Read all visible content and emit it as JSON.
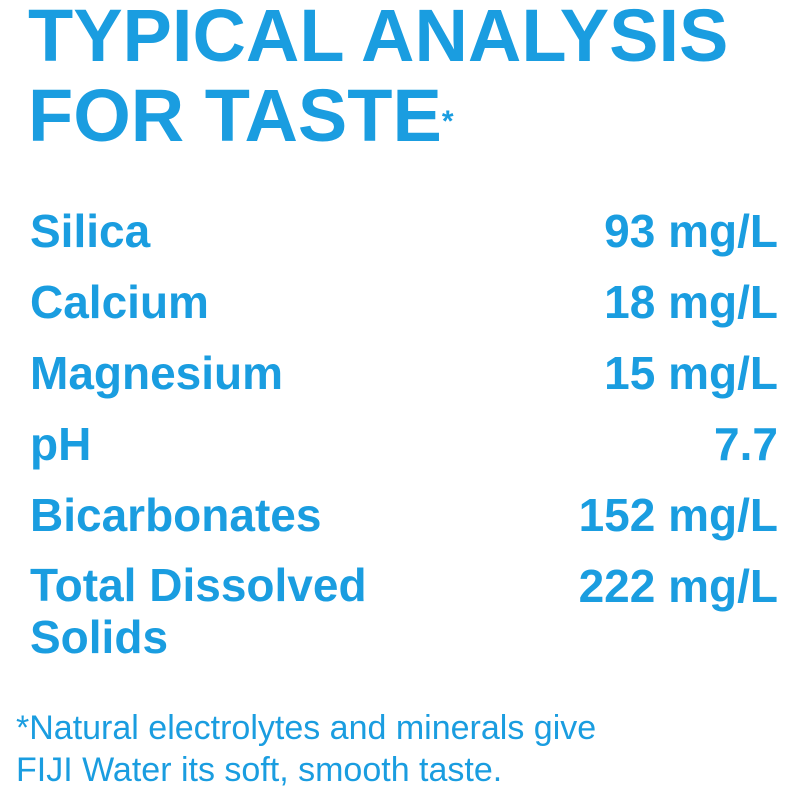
{
  "title": {
    "line1": "TYPICAL ANALYSIS",
    "line2": "FOR TASTE",
    "asterisk": "*"
  },
  "rows": [
    {
      "label": "Silica",
      "value": "93 mg/L"
    },
    {
      "label": "Calcium",
      "value": "18 mg/L"
    },
    {
      "label": "Magnesium",
      "value": "15 mg/L"
    },
    {
      "label": "pH",
      "value": "7.7"
    },
    {
      "label": "Bicarbonates",
      "value": "152 mg/L"
    },
    {
      "label": "Total Dissolved Solids",
      "value": "222 mg/L"
    }
  ],
  "footnote": {
    "line1": "*Natural electrolytes and minerals give",
    "line2": "FIJI Water its soft, smooth taste."
  },
  "colors": {
    "text": "#1a9de0",
    "background": "#ffffff"
  }
}
